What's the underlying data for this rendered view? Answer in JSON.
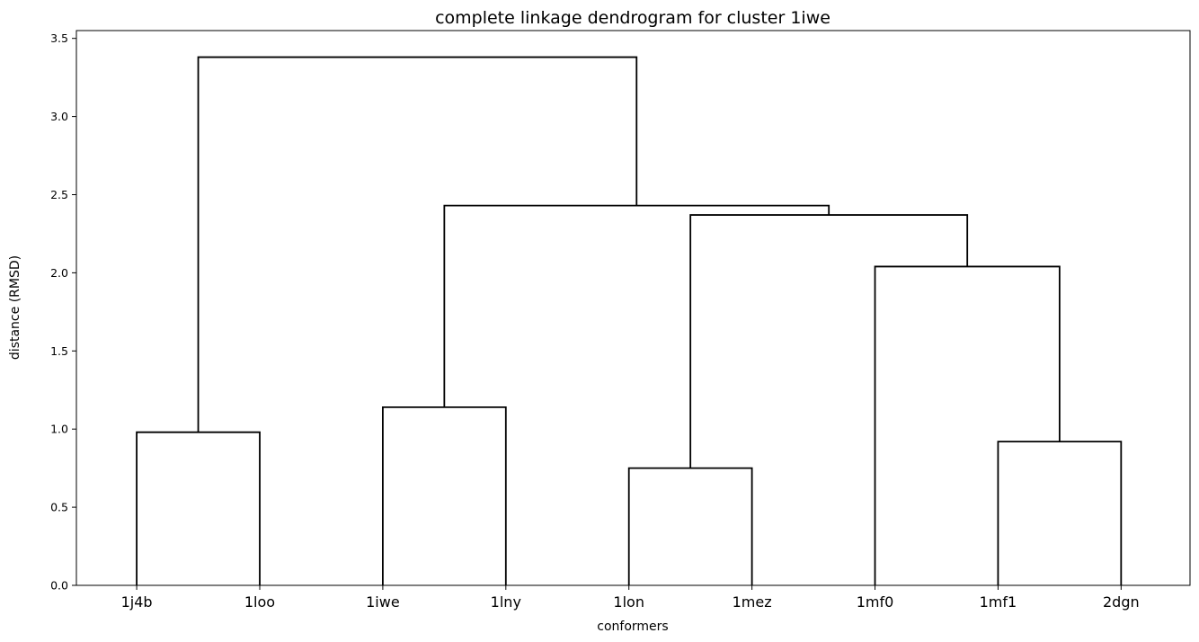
{
  "chart_data": {
    "type": "dendrogram",
    "title": "complete linkage dendrogram for cluster 1iwe",
    "xlabel": "conformers",
    "ylabel": "distance (RMSD)",
    "ylim": [
      0,
      3.55
    ],
    "yticks": [
      0.0,
      0.5,
      1.0,
      1.5,
      2.0,
      2.5,
      3.0,
      3.5
    ],
    "ytick_labels": [
      "0.0",
      "0.5",
      "1.0",
      "1.5",
      "2.0",
      "2.5",
      "3.0",
      "3.5"
    ],
    "leaves": [
      "1j4b",
      "1loo",
      "1iwe",
      "1lny",
      "1lon",
      "1mez",
      "1mf0",
      "1mf1",
      "2dgn"
    ],
    "merges": [
      {
        "left": "1j4b",
        "right": "1loo",
        "height": 0.98
      },
      {
        "left": "1iwe",
        "right": "1lny",
        "height": 1.14
      },
      {
        "left": "1lon",
        "right": "1mez",
        "height": 0.75
      },
      {
        "left": "1mf1",
        "right": "2dgn",
        "height": 0.92
      },
      {
        "left": "1mf0",
        "right": "{1mf1,2dgn}",
        "height": 2.04
      },
      {
        "left": "{1lon,1mez}",
        "right": "{1mf0,1mf1,2dgn}",
        "height": 2.37
      },
      {
        "left": "{1iwe,1lny}",
        "right": "{1lon,1mez,1mf0,1mf1,2dgn}",
        "height": 2.43
      },
      {
        "left": "{1j4b,1loo}",
        "right": "{1iwe,1lny,1lon,1mez,1mf0,1mf1,2dgn}",
        "height": 3.38
      }
    ],
    "grid": false,
    "line_color": "#000000"
  }
}
